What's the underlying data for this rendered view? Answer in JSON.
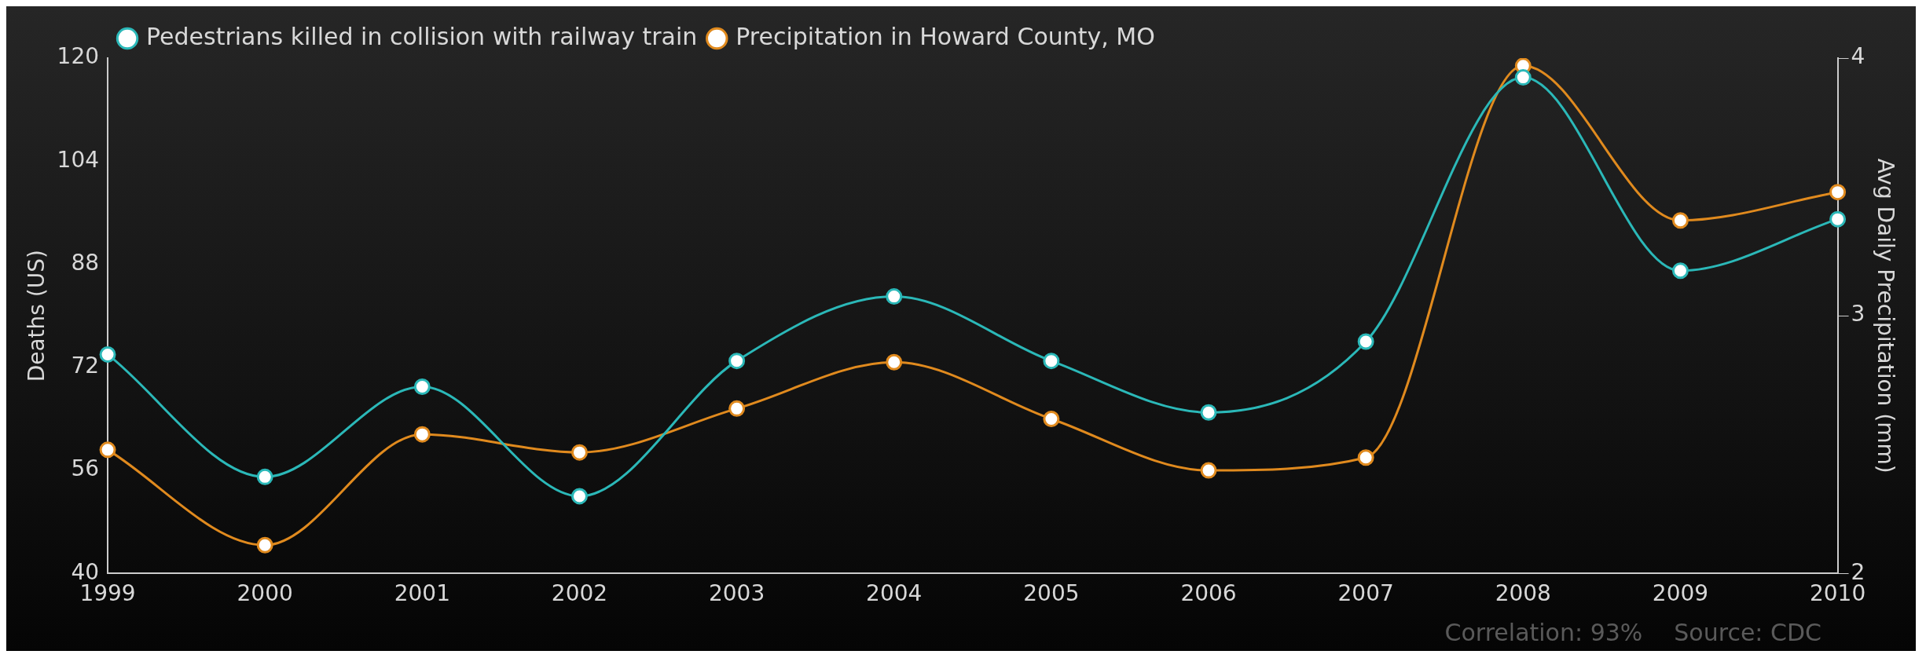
{
  "chart_data": {
    "type": "line",
    "categories": [
      "1999",
      "2000",
      "2001",
      "2002",
      "2003",
      "2004",
      "2005",
      "2006",
      "2007",
      "2008",
      "2009",
      "2010"
    ],
    "series": [
      {
        "name": "Pedestrians killed in collision with railway train",
        "color": "#2bb8b8",
        "values": [
          74,
          55,
          69,
          52,
          73,
          83,
          73,
          65,
          76,
          117,
          87,
          95
        ]
      },
      {
        "name": "Precipitation in Howard County, MO",
        "color": "#e08a1e",
        "axis": "y2",
        "values": [
          2.48,
          2.11,
          2.54,
          2.47,
          2.64,
          2.82,
          2.6,
          2.4,
          2.45,
          3.97,
          3.37,
          3.48
        ]
      }
    ],
    "ylabel": "Deaths (US)",
    "y2label": "Avg Daily Precipitation (mm)",
    "ylim": [
      40,
      120
    ],
    "yticks": [
      40,
      56,
      72,
      88,
      104,
      120
    ],
    "y2lim": [
      2,
      4
    ],
    "y2ticks": [
      2,
      3,
      4
    ],
    "legend": "top left",
    "grid": false,
    "marker": "circle",
    "line_style": "solid",
    "annotations": [
      "Correlation: 93%",
      "Source: CDC"
    ]
  }
}
